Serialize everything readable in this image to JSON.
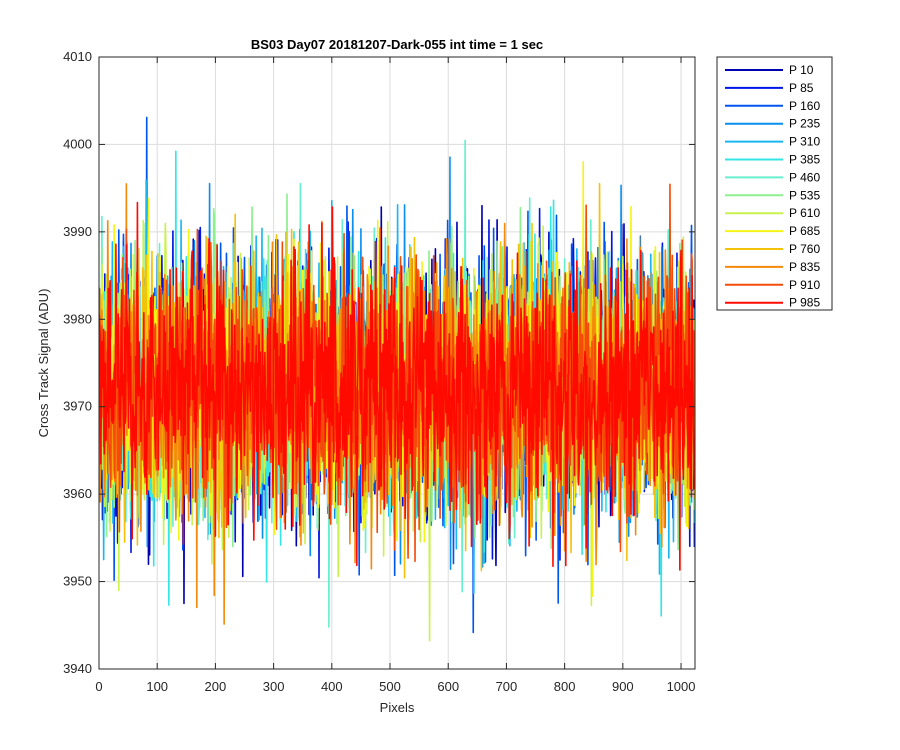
{
  "chart_data": {
    "type": "line",
    "title": "BS03 Day07 20181207-Dark-055 int time = 1 sec",
    "xlabel": "Pixels",
    "ylabel": "Cross Track Signal (ADU)",
    "xlim": [
      0,
      1024
    ],
    "ylim": [
      3940,
      4010
    ],
    "xticks": [
      0,
      100,
      200,
      300,
      400,
      500,
      600,
      700,
      800,
      900,
      1000
    ],
    "yticks": [
      3940,
      3950,
      3960,
      3970,
      3980,
      3990,
      4000,
      4010
    ],
    "xtick_labels": [
      "0",
      "100",
      "200",
      "300",
      "400",
      "500",
      "600",
      "700",
      "800",
      "900",
      "1000"
    ],
    "ytick_labels": [
      "3940",
      "3950",
      "3960",
      "3970",
      "3980",
      "3990",
      "4000",
      "4010"
    ],
    "grid": true,
    "legend_position": "outside-top-right",
    "noise_model": {
      "description": "Dark-frame noise, each series ~1024 pixels, values fluctuate around the mean",
      "n_points": 1024,
      "mean": 3972,
      "sigma": 7,
      "min": 3941,
      "max": 4006
    },
    "series": [
      {
        "name": "P 10",
        "color": "#0000b3"
      },
      {
        "name": "P 85",
        "color": "#0015e6"
      },
      {
        "name": "P 160",
        "color": "#0055f0"
      },
      {
        "name": "P 235",
        "color": "#0a8ff0"
      },
      {
        "name": "P 310",
        "color": "#1ab6f2"
      },
      {
        "name": "P 385",
        "color": "#33e6e6"
      },
      {
        "name": "P 460",
        "color": "#66efcc"
      },
      {
        "name": "P 535",
        "color": "#8cf08c"
      },
      {
        "name": "P 610",
        "color": "#c9f24d"
      },
      {
        "name": "P 685",
        "color": "#f5f515"
      },
      {
        "name": "P 760",
        "color": "#f5c20a"
      },
      {
        "name": "P 835",
        "color": "#f58a0a"
      },
      {
        "name": "P 910",
        "color": "#f54b0a"
      },
      {
        "name": "P 985",
        "color": "#ff0a00"
      }
    ]
  }
}
